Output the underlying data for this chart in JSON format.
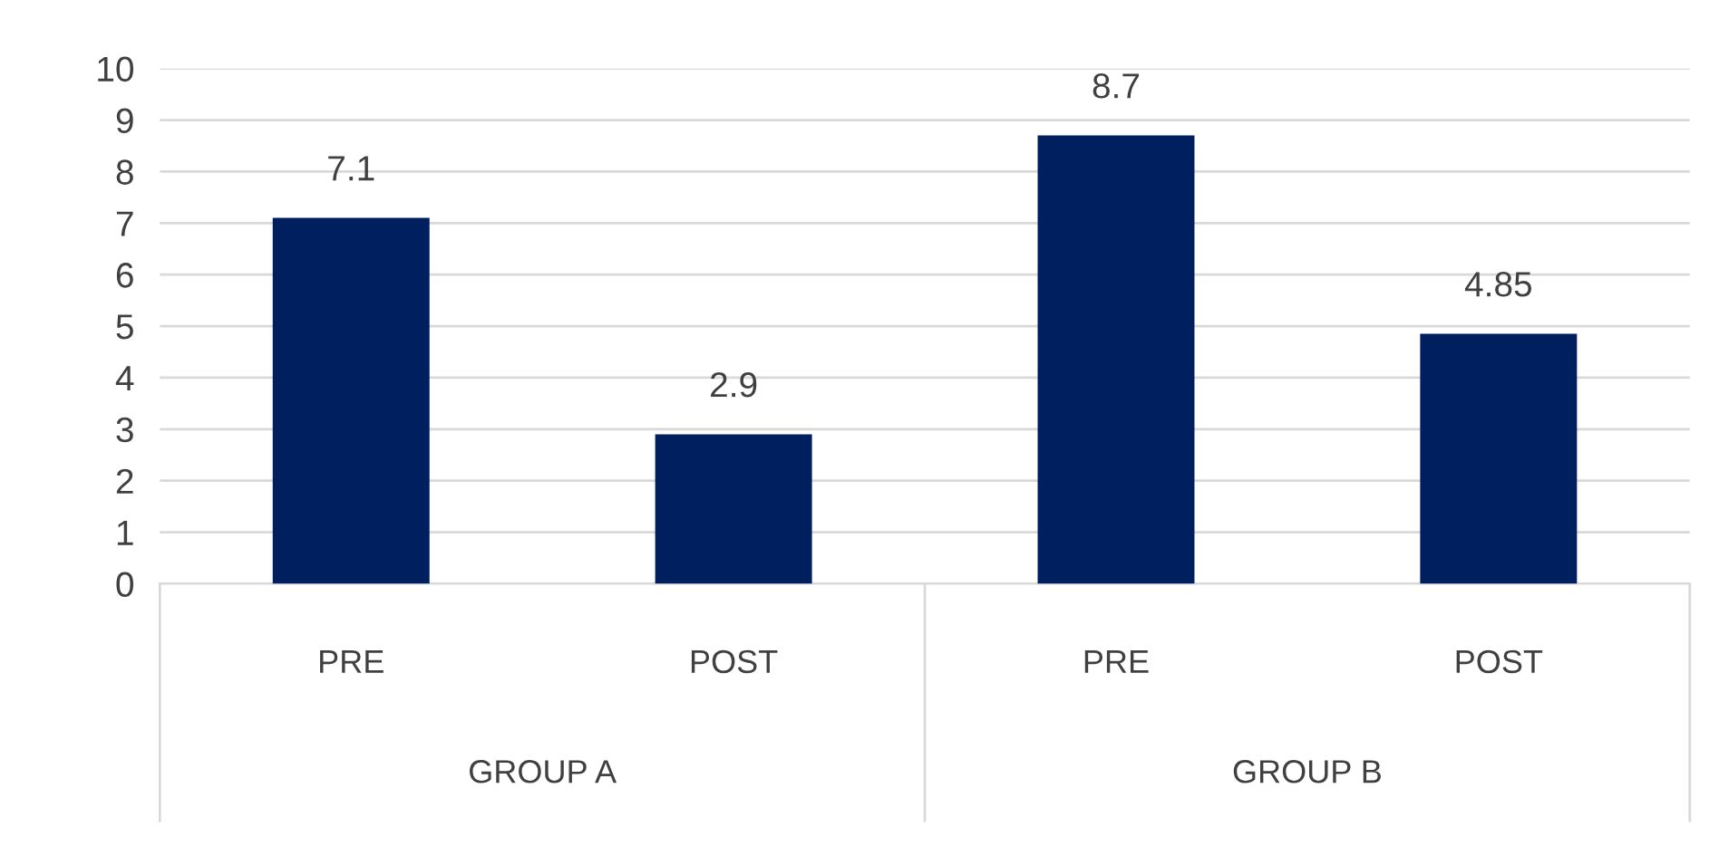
{
  "chart_data": {
    "type": "bar",
    "categories": [
      "PRE",
      "POST",
      "PRE",
      "POST"
    ],
    "values": [
      7.1,
      2.9,
      8.7,
      4.85
    ],
    "color": "#001f5f",
    "data_labels": true,
    "value_labels": [
      "7.1",
      "2.9",
      "8.7",
      "4.85"
    ],
    "annotations": [
      "GROUP A",
      "GROUP B"
    ],
    "ylim": [
      0,
      10
    ],
    "yticks": [
      0,
      1,
      2,
      3,
      4,
      5,
      6,
      7,
      8,
      9,
      10
    ],
    "grid": "y",
    "legend": false
  }
}
